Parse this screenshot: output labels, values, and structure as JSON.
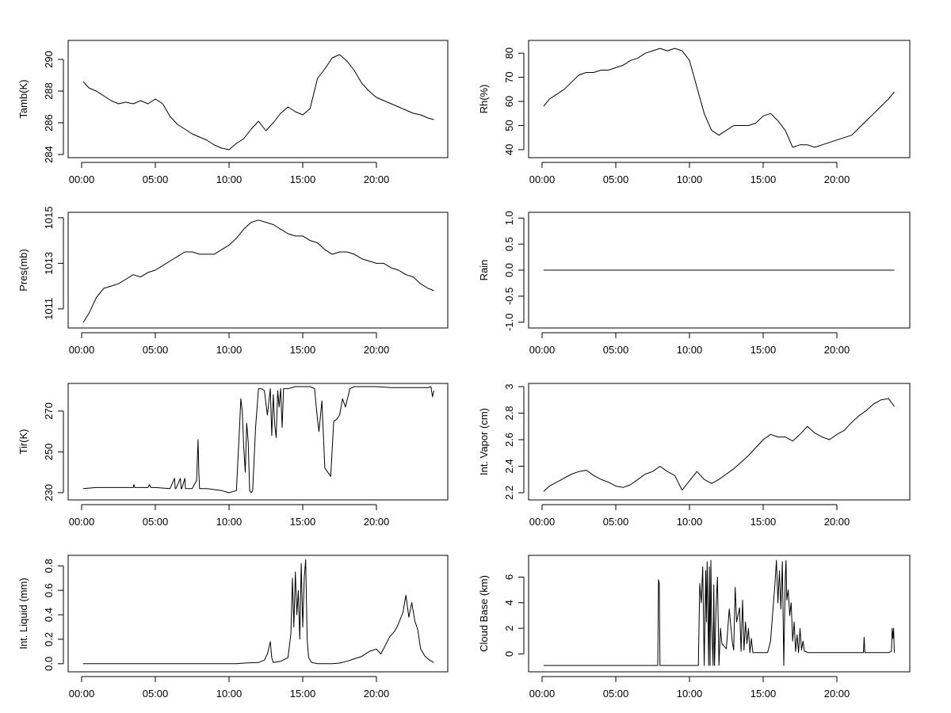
{
  "chart_data": [
    {
      "type": "line",
      "ylabel": "Tamb(K)",
      "x_ticks": [
        "00:00",
        "05:00",
        "10:00",
        "15:00",
        "20:00"
      ],
      "x_tick_hours": [
        0,
        5,
        10,
        15,
        20
      ],
      "xlim": [
        0,
        24
      ],
      "y_ticks": [
        284,
        286,
        288,
        290
      ],
      "ylim": [
        284,
        291
      ],
      "x": [
        0.1,
        0.5,
        1.0,
        1.5,
        2.0,
        2.5,
        3.0,
        3.5,
        4.0,
        4.5,
        5.0,
        5.5,
        6.0,
        6.5,
        7.0,
        7.5,
        8.0,
        8.5,
        9.0,
        9.5,
        10.0,
        10.5,
        11.0,
        11.5,
        12.0,
        12.5,
        13.0,
        13.5,
        14.0,
        14.5,
        15.0,
        15.5,
        16.0,
        16.5,
        17.0,
        17.5,
        18.0,
        18.5,
        19.0,
        19.5,
        20.0,
        20.5,
        21.0,
        21.5,
        22.0,
        22.5,
        23.0,
        23.5,
        23.9
      ],
      "y": [
        288.6,
        288.2,
        288.0,
        287.7,
        287.4,
        287.2,
        287.3,
        287.2,
        287.4,
        287.2,
        287.5,
        287.2,
        286.4,
        285.9,
        285.6,
        285.3,
        285.1,
        284.9,
        284.6,
        284.4,
        284.3,
        284.7,
        285.0,
        285.6,
        286.1,
        285.5,
        286.0,
        286.6,
        287.0,
        286.7,
        286.5,
        286.9,
        288.8,
        289.4,
        290.1,
        290.3,
        289.9,
        289.3,
        288.5,
        288.0,
        287.6,
        287.4,
        287.2,
        287.0,
        286.8,
        286.6,
        286.5,
        286.3,
        286.2
      ]
    },
    {
      "type": "line",
      "ylabel": "Rh(%)",
      "x_ticks": [
        "00:00",
        "05:00",
        "10:00",
        "15:00",
        "20:00"
      ],
      "x_tick_hours": [
        0,
        5,
        10,
        15,
        20
      ],
      "xlim": [
        0,
        24
      ],
      "y_ticks": [
        40,
        50,
        60,
        70,
        80
      ],
      "ylim": [
        38,
        84
      ],
      "x": [
        0.1,
        0.5,
        1.0,
        1.5,
        2.0,
        2.5,
        3.0,
        3.5,
        4.0,
        4.5,
        5.0,
        5.5,
        6.0,
        6.5,
        7.0,
        7.5,
        8.0,
        8.5,
        9.0,
        9.5,
        10.0,
        10.5,
        11.0,
        11.5,
        12.0,
        12.5,
        13.0,
        13.5,
        14.0,
        14.5,
        15.0,
        15.5,
        16.0,
        16.5,
        17.0,
        17.5,
        18.0,
        18.5,
        19.0,
        19.5,
        20.0,
        20.5,
        21.0,
        21.5,
        22.0,
        22.5,
        23.0,
        23.5,
        23.9
      ],
      "y": [
        58,
        61,
        63,
        65,
        68,
        71,
        72,
        72,
        73,
        73,
        74,
        75,
        77,
        78,
        80,
        81,
        82,
        81,
        82,
        81,
        77,
        66,
        55,
        48,
        46,
        48,
        50,
        50,
        50,
        51,
        54,
        55,
        52,
        48,
        41,
        42,
        42,
        41,
        42,
        43,
        44,
        45,
        46,
        49,
        52,
        55,
        58,
        61,
        64
      ]
    },
    {
      "type": "line",
      "ylabel": "Pres(mb)",
      "x_ticks": [
        "00:00",
        "05:00",
        "10:00",
        "15:00",
        "20:00"
      ],
      "x_tick_hours": [
        0,
        5,
        10,
        15,
        20
      ],
      "xlim": [
        0,
        24
      ],
      "y_ticks": [
        1011,
        1013,
        1015
      ],
      "ylim": [
        1010.3,
        1015.1
      ],
      "x": [
        0.1,
        0.5,
        1.0,
        1.5,
        2.0,
        2.5,
        3.0,
        3.5,
        4.0,
        4.5,
        5.0,
        5.5,
        6.0,
        6.5,
        7.0,
        7.5,
        8.0,
        8.5,
        9.0,
        9.5,
        10.0,
        10.5,
        11.0,
        11.5,
        12.0,
        12.5,
        13.0,
        13.5,
        14.0,
        14.5,
        15.0,
        15.5,
        16.0,
        16.5,
        17.0,
        17.5,
        18.0,
        18.5,
        19.0,
        19.5,
        20.0,
        20.5,
        21.0,
        21.5,
        22.0,
        22.5,
        23.0,
        23.5,
        23.9
      ],
      "y": [
        1010.4,
        1010.8,
        1011.5,
        1011.9,
        1012.0,
        1012.1,
        1012.3,
        1012.5,
        1012.4,
        1012.6,
        1012.7,
        1012.9,
        1013.1,
        1013.3,
        1013.5,
        1013.5,
        1013.4,
        1013.4,
        1013.4,
        1013.6,
        1013.8,
        1014.1,
        1014.5,
        1014.8,
        1014.9,
        1014.8,
        1014.7,
        1014.5,
        1014.3,
        1014.2,
        1014.2,
        1014.0,
        1013.9,
        1013.6,
        1013.4,
        1013.5,
        1013.5,
        1013.4,
        1013.2,
        1013.1,
        1013.0,
        1013.0,
        1012.8,
        1012.7,
        1012.5,
        1012.4,
        1012.1,
        1011.9,
        1011.8
      ]
    },
    {
      "type": "line",
      "ylabel": "Rain",
      "x_ticks": [
        "00:00",
        "05:00",
        "10:00",
        "15:00",
        "20:00"
      ],
      "x_tick_hours": [
        0,
        5,
        10,
        15,
        20
      ],
      "xlim": [
        0,
        24
      ],
      "y_ticks": [
        -1.0,
        -0.5,
        0.0,
        0.5,
        1.0
      ],
      "y_tick_labels": [
        "-1.0",
        "-0.5",
        "0.0",
        "0.5",
        "1.0"
      ],
      "ylim": [
        -1.05,
        1.05
      ],
      "x": [
        0.1,
        23.9
      ],
      "y": [
        0,
        0
      ]
    },
    {
      "type": "line",
      "ylabel": "Tir(K)",
      "x_ticks": [
        "00:00",
        "05:00",
        "10:00",
        "15:00",
        "20:00"
      ],
      "x_tick_hours": [
        0,
        5,
        10,
        15,
        20
      ],
      "xlim": [
        0,
        24
      ],
      "y_ticks": [
        230,
        250,
        270
      ],
      "ylim": [
        228,
        282
      ],
      "x": [
        0.1,
        1.0,
        2.0,
        3.0,
        3.5,
        3.55,
        3.6,
        4.0,
        4.5,
        4.6,
        4.7,
        5.0,
        6.0,
        6.3,
        6.35,
        6.4,
        6.7,
        6.75,
        6.8,
        7.0,
        7.05,
        7.1,
        7.5,
        7.8,
        7.9,
        7.95,
        8.0,
        8.5,
        9.0,
        9.5,
        10.0,
        10.5,
        10.7,
        10.8,
        10.9,
        11.0,
        11.1,
        11.2,
        11.3,
        11.4,
        11.5,
        11.6,
        11.8,
        12.0,
        12.2,
        12.4,
        12.6,
        12.8,
        12.9,
        13.0,
        13.1,
        13.2,
        13.3,
        13.4,
        13.5,
        13.6,
        13.7,
        14.0,
        14.5,
        15.0,
        15.5,
        15.8,
        16.0,
        16.1,
        16.3,
        16.5,
        16.7,
        16.9,
        17.1,
        17.3,
        17.5,
        17.7,
        17.9,
        18.2,
        18.5,
        19.0,
        20.0,
        21.0,
        22.0,
        23.0,
        23.5,
        23.7,
        23.8,
        23.9
      ],
      "y": [
        232,
        232.5,
        232.5,
        232.5,
        232.5,
        234,
        232.5,
        232.5,
        232.5,
        234,
        232.5,
        232.5,
        232,
        237,
        232,
        232,
        237,
        232,
        232,
        237,
        232,
        232,
        232,
        236,
        256,
        240,
        232,
        232,
        231.5,
        231,
        230,
        231,
        260,
        276,
        270,
        252,
        240,
        264,
        255,
        231,
        230,
        231,
        262,
        281,
        281,
        280,
        268,
        281,
        258,
        278,
        263,
        257,
        280,
        272,
        281,
        262,
        281,
        281,
        282,
        282,
        282,
        281,
        266,
        260,
        275,
        242,
        240,
        238,
        265,
        266,
        268,
        276,
        272,
        281,
        282,
        282,
        282,
        281.5,
        281.5,
        281.5,
        281.5,
        282,
        277,
        280
      ]
    },
    {
      "type": "line",
      "ylabel": "Int. Vapor (cm)",
      "x_ticks": [
        "00:00",
        "05:00",
        "10:00",
        "15:00",
        "20:00"
      ],
      "x_tick_hours": [
        0,
        5,
        10,
        15,
        20
      ],
      "xlim": [
        0,
        24
      ],
      "y_ticks": [
        2.2,
        2.4,
        2.6,
        2.8,
        3.0
      ],
      "ylim": [
        2.17,
        3.0
      ],
      "x": [
        0.1,
        0.5,
        1.0,
        1.5,
        2.0,
        2.5,
        3.0,
        3.5,
        4.0,
        4.5,
        5.0,
        5.5,
        6.0,
        6.5,
        7.0,
        7.5,
        8.0,
        8.5,
        9.0,
        9.5,
        10.0,
        10.5,
        11.0,
        11.5,
        12.0,
        12.5,
        13.0,
        13.5,
        14.0,
        14.5,
        15.0,
        15.5,
        16.0,
        16.5,
        17.0,
        17.5,
        18.0,
        18.5,
        19.0,
        19.5,
        20.0,
        20.5,
        21.0,
        21.5,
        22.0,
        22.5,
        23.0,
        23.5,
        23.9
      ],
      "y": [
        2.21,
        2.25,
        2.28,
        2.31,
        2.34,
        2.36,
        2.37,
        2.33,
        2.3,
        2.28,
        2.25,
        2.24,
        2.26,
        2.3,
        2.34,
        2.36,
        2.4,
        2.36,
        2.33,
        2.22,
        2.29,
        2.36,
        2.3,
        2.27,
        2.3,
        2.34,
        2.38,
        2.43,
        2.48,
        2.54,
        2.6,
        2.64,
        2.62,
        2.62,
        2.59,
        2.64,
        2.7,
        2.65,
        2.62,
        2.6,
        2.64,
        2.67,
        2.73,
        2.78,
        2.82,
        2.87,
        2.9,
        2.91,
        2.85
      ]
    },
    {
      "type": "line",
      "ylabel": "Int. Liquid (mm)",
      "x_ticks": [
        "00:00",
        "05:00",
        "10:00",
        "15:00",
        "20:00"
      ],
      "x_tick_hours": [
        0,
        5,
        10,
        15,
        20
      ],
      "xlim": [
        0,
        24
      ],
      "y_ticks": [
        0.0,
        0.2,
        0.4,
        0.6,
        0.8
      ],
      "y_tick_labels": [
        "0.0",
        "0.2",
        "0.4",
        "0.6",
        "0.8"
      ],
      "ylim": [
        -0.04,
        0.86
      ],
      "x": [
        0.1,
        10.5,
        11.0,
        12.0,
        12.4,
        12.6,
        12.8,
        12.9,
        13.0,
        13.5,
        14.0,
        14.2,
        14.3,
        14.4,
        14.5,
        14.6,
        14.7,
        14.8,
        14.9,
        15.0,
        15.1,
        15.2,
        15.3,
        15.4,
        15.6,
        16.0,
        17.0,
        17.5,
        18.0,
        18.5,
        19.0,
        19.5,
        20.0,
        20.3,
        20.6,
        20.9,
        21.2,
        21.4,
        21.6,
        21.8,
        22.0,
        22.2,
        22.4,
        22.6,
        22.8,
        23.0,
        23.3,
        23.6,
        23.9
      ],
      "y": [
        0,
        0,
        0.005,
        0.01,
        0.03,
        0.08,
        0.18,
        0.05,
        0.01,
        0.02,
        0.05,
        0.25,
        0.7,
        0.3,
        0.75,
        0.4,
        0.6,
        0.2,
        0.82,
        0.3,
        0.7,
        0.85,
        0.2,
        0.05,
        0.01,
        0,
        0,
        0.005,
        0.02,
        0.04,
        0.06,
        0.1,
        0.12,
        0.08,
        0.15,
        0.22,
        0.26,
        0.3,
        0.36,
        0.42,
        0.56,
        0.38,
        0.5,
        0.35,
        0.28,
        0.12,
        0.06,
        0.03,
        0.01
      ]
    },
    {
      "type": "line",
      "ylabel": "Cloud Base (km)",
      "x_ticks": [
        "00:00",
        "05:00",
        "10:00",
        "15:00",
        "20:00"
      ],
      "x_tick_hours": [
        0,
        5,
        10,
        15,
        20
      ],
      "xlim": [
        0,
        24
      ],
      "y_ticks": [
        0,
        2,
        4,
        6
      ],
      "ylim": [
        -1.15,
        7.45
      ],
      "x": [
        0.1,
        7.85,
        7.9,
        7.95,
        8.0,
        10.6,
        10.7,
        10.8,
        10.9,
        11.0,
        11.1,
        11.15,
        11.2,
        11.3,
        11.35,
        11.4,
        11.45,
        11.5,
        11.6,
        11.65,
        11.7,
        11.8,
        11.9,
        12.0,
        12.1,
        12.2,
        12.5,
        12.7,
        12.9,
        13.0,
        13.1,
        13.2,
        13.4,
        13.5,
        13.6,
        13.7,
        13.8,
        13.9,
        14.0,
        14.1,
        14.2,
        14.3,
        14.5,
        14.8,
        15.0,
        15.3,
        15.5,
        15.7,
        15.8,
        15.9,
        16.0,
        16.1,
        16.2,
        16.3,
        16.4,
        16.5,
        16.55,
        16.6,
        16.7,
        16.8,
        16.9,
        17.0,
        17.1,
        17.2,
        17.3,
        17.4,
        17.5,
        17.6,
        17.7,
        17.8,
        17.9,
        18.0,
        18.2,
        19.0,
        20.0,
        21.0,
        21.8,
        21.85,
        21.9,
        22.0,
        23.0,
        23.5,
        23.7,
        23.75,
        23.8,
        23.85,
        23.9
      ],
      "y": [
        -0.9,
        -0.9,
        5.8,
        5.5,
        -0.9,
        -0.9,
        5.5,
        4.0,
        6.8,
        -0.9,
        6.5,
        2.5,
        7.2,
        -0.9,
        6.8,
        -0.9,
        7.3,
        2.5,
        -0.9,
        5.4,
        -0.9,
        3.5,
        6.0,
        -0.9,
        2.0,
        0.8,
        0.4,
        3.5,
        1.0,
        0.3,
        5.2,
        2.5,
        3.6,
        0.2,
        4.2,
        0.3,
        2.5,
        0.8,
        2.0,
        0.1,
        1.2,
        0.1,
        0.1,
        0.1,
        0.1,
        0.1,
        1.0,
        4.0,
        5.5,
        7.3,
        4.0,
        6.5,
        3.5,
        7.2,
        -0.9,
        6.0,
        7.3,
        4.2,
        5.0,
        3.0,
        4.0,
        1.0,
        2.5,
        0.2,
        1.5,
        0.1,
        2.0,
        0.3,
        1.0,
        0.2,
        0.2,
        0.1,
        0.1,
        0.1,
        0.1,
        0.1,
        0.1,
        1.3,
        0.1,
        0.1,
        0.1,
        0.1,
        0.2,
        2.0,
        1.2,
        2.0,
        0.1
      ]
    }
  ]
}
